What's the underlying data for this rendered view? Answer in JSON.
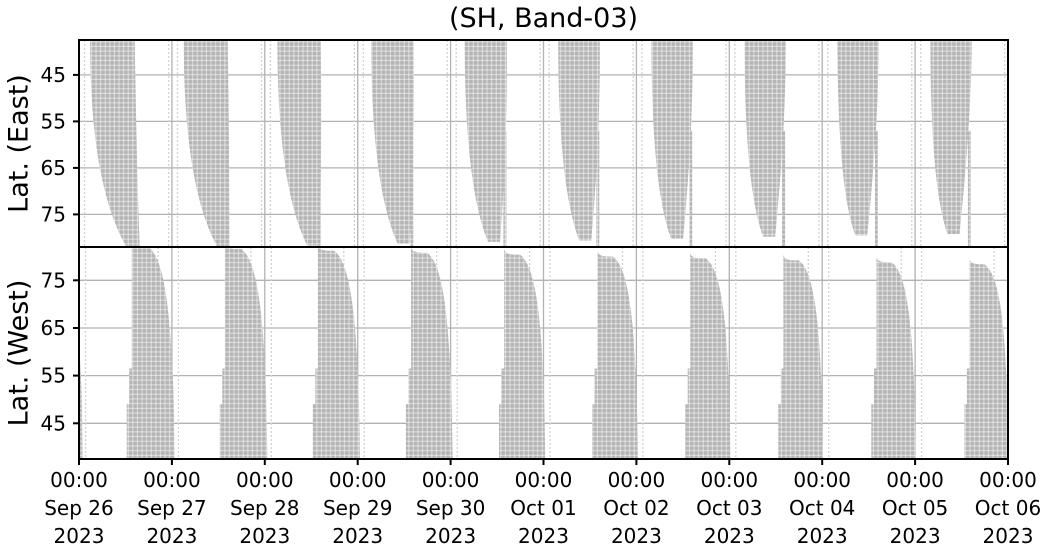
{
  "title": "(SH, Band-03)",
  "colors": {
    "swath": "#b5b5b5",
    "swath_gap": "#ffffff",
    "grid": "#b2b2b2",
    "artifact": "#d2d2d2",
    "spine": "#000000",
    "background": "#ffffff"
  },
  "chart_data": {
    "type": "heatmap",
    "title": "(SH, Band-03)",
    "description": "Satellite observation coverage (gray swaths) vs time and latitude, southern-hemisphere style split into East/West latitude panels. One curved swath per day.",
    "x_axis": {
      "start": "2023-09-26 00:00",
      "end": "2023-10-06 00:00",
      "days": 10,
      "tick_time": "00:00",
      "tick_dates": [
        "Sep 26",
        "Sep 27",
        "Sep 28",
        "Sep 29",
        "Sep 30",
        "Oct 01",
        "Oct 02",
        "Oct 03",
        "Oct 04",
        "Oct 05",
        "Oct 06"
      ],
      "tick_year": "2023",
      "grid": true
    },
    "panels": [
      {
        "id": "east",
        "ylabel": "Lat. (East)",
        "yticks": [
          45,
          55,
          65,
          75
        ],
        "lat_min": 37.5,
        "lat_max": 82,
        "orientation": "latitude increases downward",
        "grid": true
      },
      {
        "id": "west",
        "ylabel": "Lat. (West)",
        "yticks": [
          75,
          65,
          55,
          45
        ],
        "lat_min": 37.5,
        "lat_max": 82,
        "orientation": "latitude decreases downward",
        "grid": true
      }
    ],
    "east_swaths": [
      {
        "day": 0,
        "left_top": 0.118,
        "right_top": 0.6,
        "tail_x": 0.59,
        "tail_lat": 82.5
      },
      {
        "day": 1,
        "left_top": 0.127,
        "right_top": 0.601,
        "tail_x": 0.556,
        "tail_lat": 82.1
      },
      {
        "day": 2,
        "left_top": 0.136,
        "right_top": 0.602,
        "tail_x": 0.522,
        "tail_lat": 81.7
      },
      {
        "day": 3,
        "left_top": 0.145,
        "right_top": 0.603,
        "tail_x": 0.495,
        "tail_lat": 81.3
      },
      {
        "day": 4,
        "left_top": 0.152,
        "right_top": 0.604,
        "tail_x": 0.468,
        "tail_lat": 80.9
      },
      {
        "day": 5,
        "left_top": 0.158,
        "right_top": 0.605,
        "tail_x": 0.45,
        "tail_lat": 80.6
      },
      {
        "day": 6,
        "left_top": 0.162,
        "right_top": 0.606,
        "tail_x": 0.438,
        "tail_lat": 80.2
      },
      {
        "day": 7,
        "left_top": 0.164,
        "right_top": 0.607,
        "tail_x": 0.428,
        "tail_lat": 79.8
      },
      {
        "day": 8,
        "left_top": 0.165,
        "right_top": 0.608,
        "tail_x": 0.42,
        "tail_lat": 79.5
      },
      {
        "day": 9,
        "left_top": 0.165,
        "right_top": 0.609,
        "tail_x": 0.413,
        "tail_lat": 79.2
      }
    ],
    "east_sliver": {
      "x": 0.568,
      "width": 0.022,
      "lat_from": 57,
      "lat_to": 82.3
    },
    "west_swaths": [
      {
        "day": -1,
        "left_x": 0.566,
        "apex_x": 0.7,
        "apex_lat": 82.4,
        "right_bottom": 1.042
      },
      {
        "day": 0,
        "left_x": 0.568,
        "apex_x": 0.7,
        "apex_lat": 82.0,
        "right_bottom": 1.03
      },
      {
        "day": 1,
        "left_x": 0.57,
        "apex_x": 0.7,
        "apex_lat": 81.6,
        "right_bottom": 1.027
      },
      {
        "day": 2,
        "left_x": 0.572,
        "apex_x": 0.7,
        "apex_lat": 81.2,
        "right_bottom": 1.024
      },
      {
        "day": 3,
        "left_x": 0.574,
        "apex_x": 0.7,
        "apex_lat": 80.8,
        "right_bottom": 1.021
      },
      {
        "day": 4,
        "left_x": 0.576,
        "apex_x": 0.7,
        "apex_lat": 80.4,
        "right_bottom": 1.018
      },
      {
        "day": 5,
        "left_x": 0.578,
        "apex_x": 0.7,
        "apex_lat": 80.0,
        "right_bottom": 1.015
      },
      {
        "day": 6,
        "left_x": 0.58,
        "apex_x": 0.7,
        "apex_lat": 79.6,
        "right_bottom": 1.012
      },
      {
        "day": 7,
        "left_x": 0.582,
        "apex_x": 0.7,
        "apex_lat": 79.2,
        "right_bottom": 1.009
      },
      {
        "day": 8,
        "left_x": 0.584,
        "apex_x": 0.7,
        "apex_lat": 78.8,
        "right_bottom": 1.006
      },
      {
        "day": 9,
        "left_x": 0.586,
        "apex_x": 0.7,
        "apex_lat": 78.4,
        "right_bottom": 1.003
      }
    ],
    "west_slivers": [
      {
        "dx": -0.028,
        "width": 0.02,
        "from_lat": 56.5
      },
      {
        "dx": -0.055,
        "width": 0.018,
        "from_lat": 49.0
      }
    ],
    "artifact_lines": {
      "east_offsets": [
        0.06,
        0.965
      ],
      "west_offsets": [
        0.07,
        0.85
      ]
    }
  }
}
